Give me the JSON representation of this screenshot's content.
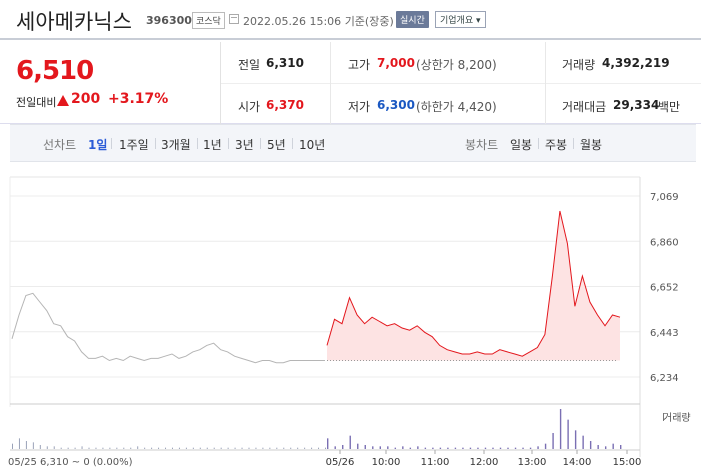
{
  "header": {
    "stock_name": "세아메카닉스",
    "stock_code": "396300",
    "market": "코스닥",
    "datetime": "2022.05.26 15:06",
    "basis": "기준(장중)",
    "realtime": "실시간",
    "overview": "기업개요 ▾"
  },
  "summary": {
    "current_price": "6,510",
    "change_label": "전일대비",
    "change_value": "200",
    "change_pct": "+3.17%",
    "prev_label": "전일",
    "prev_value": "6,310",
    "open_label": "시가",
    "open_value": "6,370",
    "high_label": "고가",
    "high_value": "7,000",
    "high_sub": "(상한가 8,200)",
    "low_label": "저가",
    "low_value": "6,300",
    "low_sub": "(하한가 4,420)",
    "volume_label": "거래량",
    "volume_value": "4,392,219",
    "amount_label": "거래대금",
    "amount_value": "29,334",
    "amount_unit": "백만"
  },
  "periodbar": {
    "line_chart_label": "선차트",
    "line_periods": [
      "1일",
      "1주일",
      "3개월",
      "1년",
      "3년",
      "5년",
      "10년"
    ],
    "candle_chart_label": "봉차트",
    "candle_periods": [
      "일봉",
      "주봉",
      "월봉"
    ],
    "active": "1일"
  },
  "colors": {
    "up": "#e3171d",
    "down": "#1a58c2",
    "accent": "#2b5bd7",
    "fill": "#fde3e3"
  },
  "chart_data": {
    "type": "line",
    "series": [
      {
        "name": "",
        "x": [
          "05/25 09:00",
          "09:05",
          "09:10",
          "09:15",
          "09:20",
          "09:25",
          "09:30",
          "09:35",
          "09:40",
          "09:45",
          "09:50",
          "09:55",
          "10:00",
          "10:10",
          "10:20",
          "10:30",
          "10:40",
          "10:50",
          "11:00",
          "11:10",
          "11:20",
          "11:30",
          "11:40",
          "11:50",
          "12:00",
          "12:10",
          "12:20",
          "12:30",
          "12:40",
          "12:50",
          "13:00",
          "13:10",
          "13:20",
          "13:30",
          "13:40",
          "13:50",
          "14:00",
          "14:10",
          "14:20",
          "14:30",
          "14:40",
          "14:50",
          "15:00",
          "15:10",
          "15:20",
          "15:30"
        ],
        "values": [
          6410,
          6520,
          6610,
          6620,
          6580,
          6540,
          6480,
          6470,
          6420,
          6400,
          6350,
          6320,
          6320,
          6330,
          6310,
          6320,
          6310,
          6330,
          6320,
          6310,
          6320,
          6320,
          6330,
          6340,
          6320,
          6330,
          6350,
          6360,
          6380,
          6390,
          6360,
          6350,
          6330,
          6320,
          6310,
          6300,
          6310,
          6310,
          6300,
          6300,
          6310,
          6310,
          6310,
          6310,
          6310,
          6310
        ],
        "session": "05/25"
      },
      {
        "name": "",
        "x": [
          "09:00",
          "09:10",
          "09:20",
          "09:30",
          "09:40",
          "09:50",
          "10:00",
          "10:10",
          "10:20",
          "10:30",
          "10:40",
          "10:50",
          "11:00",
          "11:10",
          "11:20",
          "11:30",
          "11:40",
          "11:50",
          "12:00",
          "12:10",
          "12:20",
          "12:30",
          "12:40",
          "12:50",
          "13:00",
          "13:10",
          "13:20",
          "13:30",
          "13:40",
          "13:50",
          "14:00",
          "14:05",
          "14:10",
          "14:15",
          "14:20",
          "14:30",
          "14:40",
          "14:50",
          "15:00",
          "15:06"
        ],
        "values": [
          6380,
          6500,
          6480,
          6600,
          6520,
          6480,
          6510,
          6490,
          6470,
          6480,
          6460,
          6450,
          6470,
          6440,
          6420,
          6380,
          6360,
          6350,
          6340,
          6340,
          6350,
          6340,
          6340,
          6360,
          6350,
          6340,
          6330,
          6350,
          6370,
          6430,
          6700,
          7000,
          6850,
          6560,
          6700,
          6580,
          6520,
          6470,
          6520,
          6510
        ],
        "session": "05/26"
      }
    ],
    "prev_close": 6310,
    "y_ticks": [
      "7,069",
      "6,860",
      "6,652",
      "6,443",
      "6,234"
    ],
    "ylim": [
      6234,
      7069
    ],
    "x_ticks": [
      "05/26",
      "10:00",
      "11:00",
      "12:00",
      "13:00",
      "14:00",
      "15:00"
    ],
    "footer_left": "05/25  6,310 ~ 0 (0.00%)",
    "volume_label": "거래량",
    "volume_05_25": [
      4,
      8,
      6,
      5,
      3,
      2,
      2,
      1,
      1,
      1,
      2,
      1,
      1,
      1,
      1,
      1,
      1,
      1,
      2,
      1,
      1,
      1,
      1,
      1,
      1,
      1,
      1,
      1,
      1,
      1,
      1,
      1,
      1,
      1,
      1,
      1,
      1,
      1,
      1,
      1,
      1,
      1,
      1,
      1,
      1,
      1
    ],
    "volume_05_26": [
      8,
      2,
      3,
      10,
      4,
      3,
      2,
      2,
      2,
      1,
      2,
      1,
      2,
      1,
      1,
      1,
      1,
      1,
      1,
      1,
      1,
      1,
      1,
      1,
      1,
      1,
      1,
      1,
      2,
      4,
      12,
      30,
      22,
      14,
      10,
      6,
      3,
      2,
      4,
      3
    ],
    "grid": true
  }
}
